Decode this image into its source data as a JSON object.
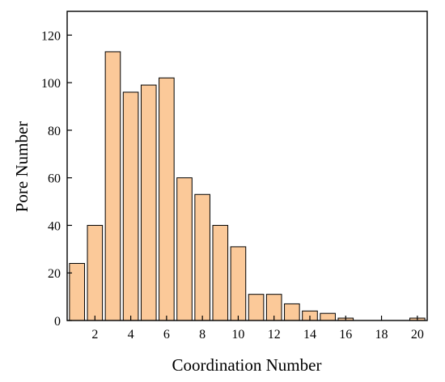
{
  "chart_data": {
    "type": "bar",
    "title": "",
    "xlabel": "Coordination Number",
    "ylabel": "Pore Number",
    "x": [
      1,
      2,
      3,
      4,
      5,
      6,
      7,
      8,
      9,
      10,
      11,
      12,
      13,
      14,
      15,
      16,
      17,
      18,
      19,
      20
    ],
    "values": [
      24,
      40,
      113,
      96,
      99,
      102,
      60,
      53,
      40,
      31,
      11,
      11,
      7,
      4,
      3,
      1,
      0,
      0,
      0,
      1
    ],
    "xticks": [
      2,
      4,
      6,
      8,
      10,
      12,
      14,
      16,
      18,
      20
    ],
    "yticks": [
      0,
      20,
      40,
      60,
      80,
      100,
      120
    ],
    "xlim": [
      0.45,
      20.55
    ],
    "ylim": [
      0,
      130
    ],
    "grid": false,
    "legend": "none",
    "bar_color": "#FBC999",
    "bar_edge_color": "#000000"
  }
}
